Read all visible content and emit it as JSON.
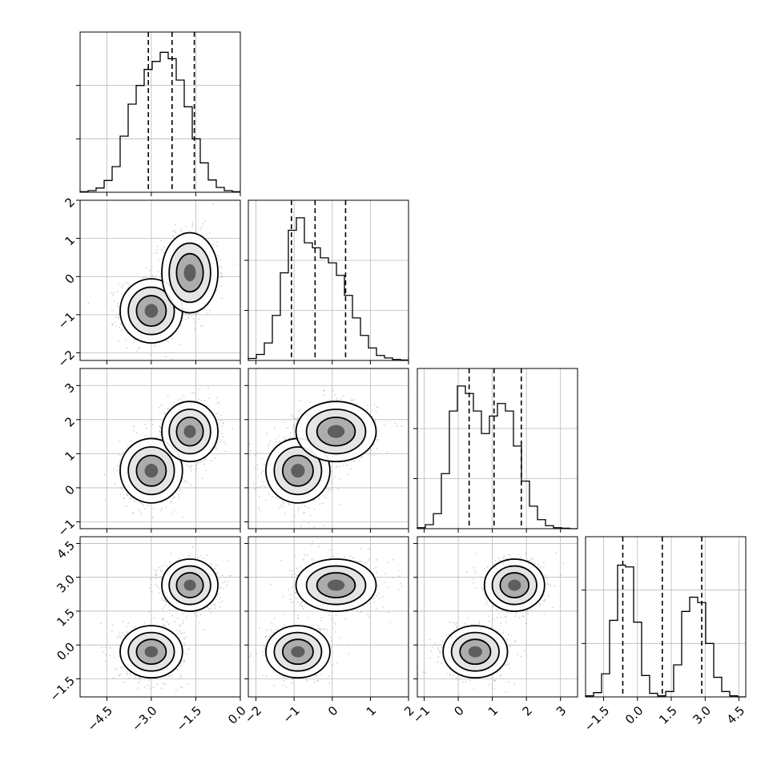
{
  "chart_data": {
    "type": "corner",
    "dims": [
      {
        "lim": [
          -5.4,
          0.0
        ],
        "ticks": [
          -4.5,
          -3.0,
          -1.5,
          0.0
        ],
        "labels": [
          "−4.5",
          "−3.0",
          "−1.5",
          "0.0"
        ]
      },
      {
        "lim": [
          -2.2,
          2.0
        ],
        "ticks": [
          -2,
          -1,
          0,
          1,
          2
        ],
        "labels": [
          "−2",
          "−1",
          "0",
          "1",
          "2"
        ]
      },
      {
        "lim": [
          -1.2,
          3.5
        ],
        "ticks": [
          -1,
          0,
          1,
          2,
          3
        ],
        "labels": [
          "−1",
          "0",
          "1",
          "2",
          "3"
        ]
      },
      {
        "lim": [
          -2.3,
          4.8
        ],
        "ticks": [
          -1.5,
          0.0,
          1.5,
          3.0,
          4.5
        ],
        "labels": [
          "−1.5",
          "0.0",
          "1.5",
          "3.0",
          "4.5"
        ]
      }
    ],
    "diagonal": [
      {
        "bins": [
          -5.4,
          -5.13,
          -4.86,
          -4.59,
          -4.32,
          -4.05,
          -3.78,
          -3.51,
          -3.24,
          -2.97,
          -2.7,
          -2.43,
          -2.16,
          -1.89,
          -1.62,
          -1.35,
          -1.08,
          -0.81,
          -0.54,
          -0.27,
          0.0
        ],
        "counts": [
          1,
          3,
          8,
          22,
          48,
          105,
          165,
          200,
          230,
          245,
          262,
          250,
          210,
          160,
          100,
          55,
          23,
          9,
          3,
          1
        ],
        "ymax": 300,
        "quantiles": [
          -3.1,
          -2.3,
          -1.55
        ]
      },
      {
        "bins": [
          -2.2,
          -1.99,
          -1.78,
          -1.57,
          -1.36,
          -1.15,
          -0.94,
          -0.73,
          -0.52,
          -0.31,
          -0.1,
          0.11,
          0.32,
          0.53,
          0.74,
          0.95,
          1.16,
          1.37,
          1.58,
          1.79,
          2.0
        ],
        "counts": [
          4,
          12,
          35,
          90,
          175,
          260,
          285,
          235,
          225,
          205,
          195,
          170,
          130,
          85,
          50,
          25,
          10,
          5,
          2,
          1
        ],
        "ymax": 320,
        "quantiles": [
          -1.07,
          -0.45,
          0.35
        ]
      },
      {
        "bins": [
          -1.2,
          -0.965,
          -0.73,
          -0.495,
          -0.26,
          -0.025,
          0.21,
          0.445,
          0.68,
          0.915,
          1.15,
          1.385,
          1.62,
          1.855,
          2.09,
          2.325,
          2.56,
          2.795,
          3.03,
          3.265,
          3.5
        ],
        "counts": [
          2,
          8,
          30,
          110,
          235,
          285,
          270,
          235,
          190,
          225,
          250,
          235,
          165,
          95,
          45,
          18,
          6,
          2,
          1,
          0
        ],
        "ymax": 320,
        "quantiles": [
          0.32,
          1.05,
          1.85
        ]
      },
      {
        "bins": [
          -2.3,
          -1.945,
          -1.59,
          -1.235,
          -0.88,
          -0.525,
          -0.17,
          0.185,
          0.54,
          0.895,
          1.25,
          1.605,
          1.96,
          2.315,
          2.67,
          3.025,
          3.38,
          3.735,
          4.09,
          4.445,
          4.8
        ],
        "counts": [
          3,
          12,
          65,
          215,
          370,
          365,
          210,
          60,
          10,
          3,
          15,
          90,
          240,
          280,
          265,
          150,
          55,
          15,
          3,
          0
        ],
        "ymax": 450,
        "quantiles": [
          -0.65,
          1.1,
          2.85
        ]
      }
    ],
    "components": [
      {
        "mean": [
          -3.0,
          -0.9,
          0.5,
          -0.3
        ],
        "sd": [
          0.5,
          0.4,
          0.45,
          0.55
        ]
      },
      {
        "mean": [
          -1.7,
          0.1,
          1.65,
          2.65
        ],
        "sd": [
          0.45,
          0.5,
          0.42,
          0.55
        ]
      }
    ],
    "contour_levels": [
      "39%",
      "86%",
      "98%"
    ],
    "grid": true
  }
}
